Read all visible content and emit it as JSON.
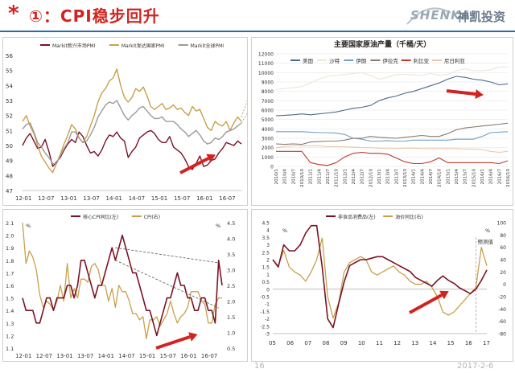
{
  "slide": {
    "star": "*",
    "title": "①：CPI稳步回升",
    "logo_en": "SHENKAI",
    "logo_cn": "神凯投资",
    "page_number": "16",
    "date": "2017-2-6"
  },
  "colors": {
    "accent": "#d2231f",
    "rule": "#2b6cb0",
    "dark_red": "#7a1325",
    "tan": "#c9a04a",
    "gray": "#9a9a9a"
  },
  "chart_data": [
    {
      "type": "line",
      "ylim": [
        47,
        56
      ],
      "ytick_labels": [
        "47",
        "48",
        "49",
        "50",
        "51",
        "52",
        "53",
        "54",
        "55",
        "56"
      ],
      "x_labels": [
        "12-01",
        "12-07",
        "13-01",
        "13-07",
        "14-01",
        "14-07",
        "15-01",
        "15-07",
        "16-01",
        "16-07"
      ],
      "x_label_positions": [
        0,
        6,
        12,
        18,
        24,
        30,
        36,
        42,
        48,
        54
      ],
      "legend": [
        "Markit新兴市场PMI",
        "Markit发达国家PMI",
        "Markit全球PMI"
      ],
      "series": [
        {
          "name": "Markit新兴市场PMI",
          "color": "#7a1325",
          "values": [
            50.0,
            50.5,
            50.8,
            50.3,
            49.8,
            49.9,
            50.4,
            49.6,
            48.6,
            48.9,
            49.2,
            49.7,
            50.1,
            50.4,
            50.2,
            50.9,
            50.6,
            50.0,
            49.5,
            49.6,
            49.3,
            49.7,
            50.3,
            50.7,
            50.6,
            50.9,
            50.5,
            50.3,
            49.2,
            49.6,
            49.9,
            50.5,
            50.7,
            50.9,
            51.0,
            50.8,
            50.4,
            50.2,
            50.2,
            50.6,
            49.9,
            49.7,
            49.5,
            49.1,
            48.6,
            48.4,
            48.8,
            49.3,
            48.6,
            48.7,
            49.0,
            49.1,
            49.5,
            49.8,
            50.2,
            50.1,
            50.0,
            50.3,
            50.1
          ]
        },
        {
          "name": "Markit发达国家PMI",
          "color": "#c9a04a",
          "values": [
            51.6,
            52.0,
            51.3,
            50.8,
            50.0,
            49.3,
            48.9,
            48.5,
            48.2,
            48.8,
            49.4,
            50.1,
            50.7,
            51.4,
            51.1,
            50.5,
            50.2,
            50.6,
            51.3,
            52.0,
            52.9,
            53.5,
            53.8,
            54.3,
            54.5,
            55.1,
            54.0,
            53.2,
            52.9,
            53.2,
            53.8,
            53.6,
            53.9,
            53.3,
            52.6,
            52.4,
            52.6,
            52.8,
            52.4,
            52.5,
            52.7,
            52.4,
            52.5,
            52.2,
            52.0,
            52.6,
            52.3,
            52.4,
            51.8,
            51.2,
            51.0,
            51.6,
            51.4,
            51.3,
            51.6,
            51.0,
            51.5,
            51.9,
            51.6
          ]
        },
        {
          "name": "Markit全球PMI",
          "color": "#9a9a9a",
          "values": [
            51.1,
            51.4,
            51.5,
            50.9,
            50.2,
            49.9,
            49.5,
            49.2,
            48.8,
            48.8,
            49.3,
            49.8,
            50.2,
            50.9,
            50.9,
            50.5,
            50.2,
            50.3,
            50.7,
            51.2,
            51.9,
            52.3,
            52.7,
            52.9,
            52.8,
            53.0,
            52.5,
            52.0,
            51.7,
            52.0,
            52.2,
            52.5,
            52.6,
            52.3,
            52.0,
            51.8,
            51.8,
            51.9,
            51.6,
            51.6,
            51.6,
            51.4,
            51.1,
            50.9,
            50.6,
            50.8,
            51.0,
            50.7,
            50.3,
            50.1,
            50.2,
            50.5,
            50.4,
            50.6,
            50.9,
            51.0,
            51.1,
            51.3,
            51.5
          ]
        }
      ]
    },
    {
      "type": "line",
      "title": "主要国家原油产量（千桶/天）",
      "ylim": [
        0,
        12000
      ],
      "ytick_labels": [
        "0",
        "1000",
        "2000",
        "3000",
        "4000",
        "5000",
        "6000",
        "7000",
        "8000",
        "9000",
        "10000",
        "11000",
        "12000"
      ],
      "x_labels": [
        "2010/1",
        "2010/4",
        "2010/7",
        "2010/10",
        "2011/1",
        "2011/4",
        "2011/7",
        "2011/10",
        "2012/1",
        "2012/4",
        "2012/7",
        "2012/10",
        "2013/1",
        "2013/4",
        "2013/7",
        "2013/10",
        "2014/1",
        "2014/4",
        "2014/7",
        "2014/10",
        "2015/1",
        "2015/4",
        "2015/7",
        "2015/10",
        "2016/1",
        "2016/4",
        "2016/7",
        "2016/10"
      ],
      "legend": [
        "美国",
        "沙特",
        "伊朗",
        "伊拉克",
        "利比亚",
        "尼日利亚"
      ],
      "series": [
        {
          "name": "美国",
          "color": "#4a6b8a",
          "values": [
            5400,
            5450,
            5500,
            5600,
            5500,
            5600,
            5700,
            5800,
            6000,
            6200,
            6300,
            6500,
            7000,
            7300,
            7500,
            7800,
            8000,
            8300,
            8600,
            8900,
            9300,
            9600,
            9500,
            9300,
            9200,
            9000,
            8700,
            8800
          ]
        },
        {
          "name": "沙特",
          "color": "#f0e6d8",
          "values": [
            8200,
            8300,
            8400,
            8500,
            8900,
            9300,
            9600,
            9700,
            9800,
            9900,
            10000,
            9700,
            9300,
            9500,
            9800,
            9800,
            9800,
            9700,
            9900,
            9700,
            9800,
            10200,
            10400,
            10200,
            10200,
            10300,
            10600,
            10600
          ]
        },
        {
          "name": "伊朗",
          "color": "#6ea0c8",
          "values": [
            3700,
            3700,
            3700,
            3700,
            3650,
            3600,
            3600,
            3550,
            3400,
            3000,
            2900,
            2700,
            2700,
            2750,
            2700,
            2700,
            2800,
            2800,
            2800,
            2800,
            2800,
            2900,
            2900,
            2900,
            3200,
            3600,
            3650,
            3700
          ]
        },
        {
          "name": "伊拉克",
          "color": "#8a7a6a",
          "values": [
            2400,
            2350,
            2400,
            2350,
            2600,
            2650,
            2700,
            2700,
            2800,
            3000,
            3000,
            3200,
            3100,
            3050,
            3000,
            3100,
            3200,
            3300,
            3200,
            3200,
            3500,
            3900,
            4100,
            4200,
            4300,
            4400,
            4500,
            4600
          ]
        },
        {
          "name": "利比亚",
          "color": "#c0392b",
          "values": [
            1600,
            1600,
            1600,
            1600,
            400,
            200,
            100,
            400,
            1000,
            1400,
            1500,
            1400,
            1400,
            1300,
            900,
            500,
            300,
            300,
            500,
            900,
            400,
            400,
            400,
            400,
            400,
            400,
            300,
            600
          ]
        },
        {
          "name": "尼日利亚",
          "color": "#e8c9a8",
          "values": [
            2000,
            2100,
            2200,
            2200,
            2200,
            2200,
            2100,
            2100,
            2100,
            2050,
            2000,
            2000,
            1950,
            1900,
            1900,
            1950,
            1950,
            1900,
            1900,
            1900,
            1900,
            1900,
            1850,
            1850,
            1800,
            1600,
            1500,
            1600
          ]
        }
      ]
    },
    {
      "type": "line",
      "ylim_left": [
        1.1,
        2.1
      ],
      "ylim_right": [
        0.5,
        4.5
      ],
      "ytick_labels_left": [
        "1.1",
        "1.2",
        "1.3",
        "1.4",
        "1.5",
        "1.6",
        "1.7",
        "1.8",
        "1.9",
        "2.0",
        "2.1"
      ],
      "ytick_labels_right": [
        "0.5",
        "1.0",
        "1.5",
        "2.0",
        "2.5",
        "3.0",
        "3.5",
        "4.0",
        "4.5"
      ],
      "unit_left": "%",
      "unit_right": "%",
      "x_labels": [
        "12-01",
        "12-07",
        "13-01",
        "13-07",
        "14-01",
        "14-07",
        "15-01",
        "15-07",
        "16-01",
        "16-07"
      ],
      "x_label_positions": [
        0,
        6,
        12,
        18,
        24,
        30,
        36,
        42,
        48,
        54
      ],
      "legend": [
        "核心CPI同比(左)",
        "CPI(右)"
      ],
      "series": [
        {
          "name": "核心CPI同比(左)",
          "color": "#7a1325",
          "values": [
            1.5,
            1.4,
            1.4,
            1.4,
            1.3,
            1.3,
            1.4,
            1.5,
            1.5,
            1.4,
            1.5,
            1.5,
            1.5,
            1.6,
            1.6,
            1.5,
            1.6,
            1.8,
            1.8,
            1.7,
            1.6,
            1.5,
            1.6,
            1.6,
            1.7,
            1.8,
            1.9,
            1.8,
            1.9,
            2.0,
            1.9,
            1.8,
            1.7,
            1.7,
            1.6,
            1.5,
            1.4,
            1.4,
            1.3,
            1.2,
            1.3,
            1.4,
            1.5,
            1.5,
            1.6,
            1.7,
            1.6,
            1.6,
            1.5,
            1.5,
            1.4,
            1.4,
            1.5,
            1.5,
            1.4,
            1.4,
            1.3,
            1.8,
            1.6
          ]
        },
        {
          "name": "CPI(右)",
          "color": "#c9a04a",
          "values": [
            4.5,
            3.2,
            3.6,
            3.4,
            3.0,
            2.2,
            1.8,
            2.0,
            1.9,
            1.7,
            2.0,
            2.5,
            2.0,
            3.2,
            2.1,
            2.4,
            2.1,
            2.7,
            2.7,
            2.6,
            3.1,
            3.2,
            3.0,
            2.5,
            2.5,
            2.0,
            2.4,
            1.8,
            2.5,
            2.3,
            2.3,
            2.0,
            1.6,
            1.6,
            1.4,
            1.5,
            0.8,
            1.4,
            1.4,
            1.5,
            1.2,
            1.4,
            1.6,
            2.0,
            1.6,
            1.3,
            1.5,
            1.6,
            1.8,
            2.3,
            2.3,
            2.3,
            2.0,
            1.9,
            1.3,
            1.3,
            1.9,
            2.1,
            2.1
          ]
        }
      ]
    },
    {
      "type": "line",
      "ylim_left": [
        -3,
        4.5
      ],
      "ylim_right": [
        -80,
        100
      ],
      "ytick_labels_left": [
        "-3",
        "-2.5",
        "-2",
        "-1.5",
        "-1",
        "-0.5",
        "0",
        "0.5",
        "1",
        "1.5",
        "2",
        "2.5",
        "3",
        "3.5",
        "4",
        "4.5"
      ],
      "ytick_labels_right": [
        "-80",
        "-60",
        "-40",
        "-20",
        "0",
        "20",
        "40",
        "60",
        "80",
        "100"
      ],
      "unit_left": "%",
      "unit_right": "%",
      "x_labels": [
        "05",
        "06",
        "07",
        "08",
        "09",
        "10",
        "11",
        "12",
        "13",
        "14",
        "15",
        "16",
        "17"
      ],
      "legend": [
        "非食品消费品(左)",
        "油价同比(右)"
      ],
      "annotation": "预测值",
      "series": [
        {
          "name": "非食品消费品(左)",
          "color": "#7a1325",
          "values": [
            2.0,
            1.5,
            3.0,
            2.6,
            2.6,
            3.0,
            3.8,
            4.3,
            4.3,
            1.5,
            -2.0,
            -2.6,
            -1.0,
            0.5,
            1.6,
            1.8,
            2.0,
            2.0,
            2.1,
            2.2,
            2.2,
            2.0,
            1.8,
            1.6,
            1.4,
            1.2,
            0.8,
            0.6,
            0.4,
            0.2,
            0.6,
            0.9,
            0.6,
            0.4,
            0.1,
            -0.1,
            -0.3,
            0.0,
            0.6,
            1.3
          ]
        },
        {
          "name": "油价同比(右)",
          "color": "#c9a04a",
          "values": [
            40,
            30,
            55,
            28,
            20,
            15,
            5,
            20,
            40,
            75,
            -20,
            -55,
            -30,
            20,
            35,
            40,
            45,
            40,
            20,
            15,
            20,
            25,
            30,
            20,
            15,
            5,
            0,
            0,
            5,
            -5,
            -20,
            -45,
            -50,
            -45,
            -35,
            -25,
            -15,
            -5,
            60,
            30
          ]
        }
      ]
    }
  ]
}
